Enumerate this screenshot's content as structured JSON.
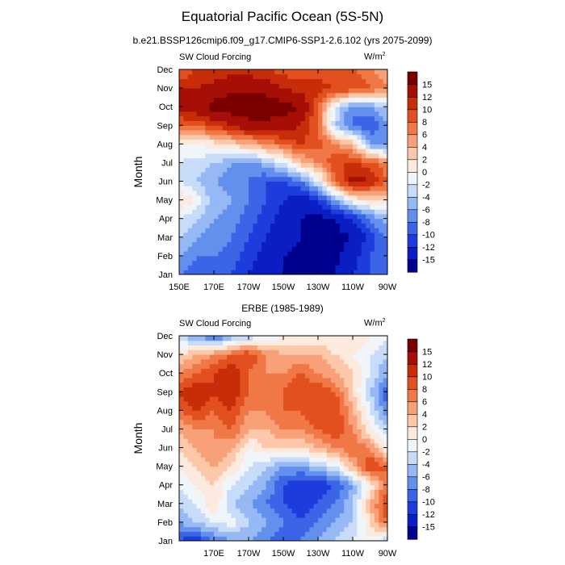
{
  "figure": {
    "title": "Equatorial Pacific Ocean (5S-5N)",
    "subtitle": "b.e21.BSSP126cmip6.f09_g17.CMIP6-SSP1-2.6.102 (yrs 2075-2099)"
  },
  "colors": [
    "#00008f",
    "#0a1ec4",
    "#1e3cdc",
    "#3c64e6",
    "#6490ed",
    "#96b9f5",
    "#c8dcfa",
    "#f0f5fa",
    "#fdeadf",
    "#fcc8a9",
    "#f8a078",
    "#f07846",
    "#e1501e",
    "#c82d0a",
    "#a50f05",
    "#7a0000"
  ],
  "chart_data": [
    {
      "type": "heatmap",
      "panel_title": "",
      "variable_label": "SW Cloud Forcing",
      "units": "W/m",
      "units_exponent": "2",
      "ylabel": "Month",
      "xlabel": "",
      "y_ticks": [
        "Jan",
        "Feb",
        "Mar",
        "Apr",
        "May",
        "Jun",
        "Jul",
        "Aug",
        "Sep",
        "Oct",
        "Nov",
        "Dec"
      ],
      "x_ticks": [
        "150E",
        "170E",
        "170W",
        "150W",
        "130W",
        "110W",
        "90W"
      ],
      "x_range": [
        150,
        270
      ],
      "colorbar_labels": [
        "-15",
        "-12",
        "-10",
        "-8",
        "-6",
        "-4",
        "-2",
        "0",
        "2",
        "4",
        "6",
        "8",
        "10",
        "12",
        "15"
      ],
      "grid": {
        "lon": [
          150,
          160,
          170,
          180,
          190,
          200,
          210,
          220,
          230,
          240,
          250,
          260,
          270
        ],
        "values": [
          [
            -8,
            -10,
            -9,
            -10,
            -12,
            -14,
            -15,
            -16,
            -16,
            -15,
            -12,
            -10,
            -8
          ],
          [
            -6,
            -8,
            -8,
            -9,
            -11,
            -13,
            -15,
            -16,
            -16,
            -16,
            -13,
            -10,
            -9
          ],
          [
            -4,
            -6,
            -7,
            -8,
            -10,
            -12,
            -14,
            -15,
            -16,
            -16,
            -15,
            -11,
            -8
          ],
          [
            -2,
            -4,
            -6,
            -7,
            -9,
            -11,
            -13,
            -15,
            -16,
            -15,
            -12,
            -8,
            -5
          ],
          [
            3,
            -1,
            -5,
            -6,
            -8,
            -10,
            -12,
            -14,
            -12,
            -6,
            0,
            2,
            2
          ],
          [
            -2,
            -4,
            -6,
            -7,
            -8,
            -10,
            -10,
            -8,
            -2,
            8,
            13,
            12,
            8
          ],
          [
            -2,
            -3,
            -4,
            -6,
            -7,
            -5,
            -2,
            3,
            6,
            10,
            10,
            9,
            6
          ],
          [
            0,
            0,
            1,
            2,
            4,
            6,
            8,
            10,
            9,
            6,
            4,
            -6,
            -8
          ],
          [
            8,
            8,
            10,
            12,
            14,
            14,
            14,
            12,
            8,
            -4,
            -8,
            -10,
            -6
          ],
          [
            13,
            14,
            16,
            17,
            17,
            17,
            16,
            15,
            8,
            -2,
            -8,
            -6,
            -4
          ],
          [
            12,
            12,
            13,
            14,
            14,
            14,
            12,
            11,
            11,
            10,
            10,
            8,
            6
          ],
          [
            8,
            10,
            10,
            11,
            11,
            10,
            9,
            9,
            9,
            8,
            8,
            6,
            5
          ]
        ]
      }
    },
    {
      "type": "heatmap",
      "panel_title": "ERBE (1985-1989)",
      "variable_label": "SW Cloud Forcing",
      "units": "W/m",
      "units_exponent": "2",
      "ylabel": "Month",
      "xlabel": "",
      "y_ticks": [
        "Jan",
        "Feb",
        "Mar",
        "Apr",
        "May",
        "Jun",
        "Jul",
        "Aug",
        "Sep",
        "Oct",
        "Nov",
        "Dec"
      ],
      "x_ticks": [
        "170E",
        "170W",
        "150W",
        "130W",
        "110W",
        "90W"
      ],
      "x_range": [
        150,
        270
      ],
      "colorbar_labels": [
        "-15",
        "-12",
        "-10",
        "-8",
        "-6",
        "-4",
        "-2",
        "0",
        "2",
        "4",
        "6",
        "8",
        "10",
        "12",
        "15"
      ],
      "grid": {
        "lon": [
          150,
          160,
          170,
          180,
          190,
          200,
          210,
          220,
          230,
          240,
          250,
          260,
          270
        ],
        "values": [
          [
            -10,
            -12,
            -8,
            -6,
            -6,
            -8,
            -10,
            -8,
            -6,
            -4,
            -2,
            0,
            -4
          ],
          [
            -6,
            -4,
            -2,
            -1,
            -4,
            -6,
            -8,
            -10,
            -8,
            -6,
            -4,
            2,
            8
          ],
          [
            -4,
            -2,
            2,
            -4,
            -6,
            -8,
            -10,
            -12,
            -10,
            -8,
            -4,
            4,
            10
          ],
          [
            -2,
            0,
            2,
            -2,
            -4,
            -6,
            -10,
            -12,
            -12,
            -10,
            -6,
            0,
            8
          ],
          [
            0,
            2,
            4,
            2,
            -2,
            -4,
            -6,
            -6,
            -4,
            -2,
            4,
            10,
            8
          ],
          [
            2,
            4,
            6,
            4,
            0,
            2,
            2,
            2,
            4,
            6,
            8,
            6,
            0
          ],
          [
            4,
            6,
            6,
            8,
            4,
            4,
            6,
            6,
            8,
            10,
            6,
            0,
            -4
          ],
          [
            8,
            10,
            8,
            10,
            6,
            6,
            8,
            8,
            10,
            10,
            4,
            -2,
            -8
          ],
          [
            10,
            12,
            10,
            12,
            8,
            6,
            8,
            10,
            10,
            8,
            2,
            -4,
            -10
          ],
          [
            6,
            8,
            10,
            12,
            8,
            6,
            6,
            8,
            6,
            4,
            2,
            -2,
            -6
          ],
          [
            2,
            4,
            6,
            8,
            10,
            6,
            4,
            4,
            4,
            2,
            0,
            -2,
            -4
          ],
          [
            -4,
            -6,
            -10,
            -6,
            -4,
            -2,
            0,
            0,
            0,
            0,
            2,
            0,
            -2
          ]
        ]
      }
    }
  ]
}
